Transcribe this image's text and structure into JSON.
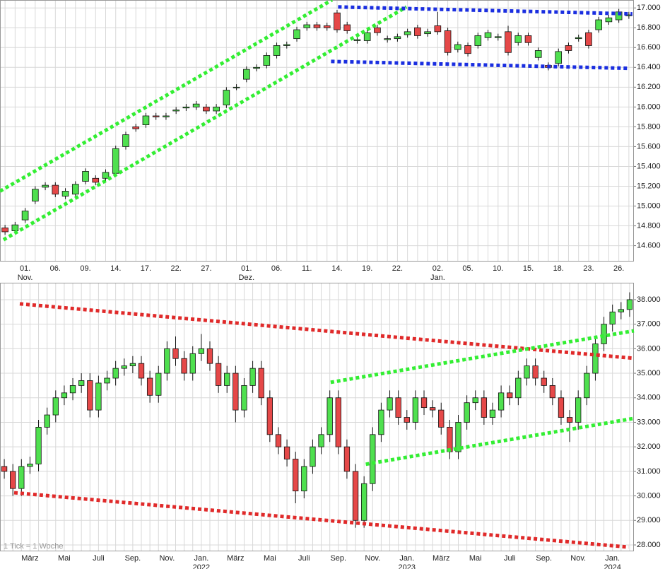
{
  "chart_data": [
    {
      "type": "candlestick",
      "up_color": "#4fe04f",
      "down_color": "#e54848",
      "grid": true,
      "categories": [
        null,
        null,
        "01.",
        null,
        null,
        "06.",
        null,
        null,
        "09.",
        null,
        null,
        "14.",
        null,
        null,
        "17.",
        null,
        null,
        "22.",
        null,
        null,
        "27.",
        null,
        null,
        null,
        "01.",
        null,
        null,
        "06.",
        null,
        null,
        "11.",
        null,
        null,
        "14.",
        null,
        null,
        "19.",
        null,
        null,
        "22.",
        null,
        null,
        null,
        "02.",
        null,
        null,
        "05.",
        null,
        null,
        "10.",
        null,
        null,
        "15.",
        null,
        null,
        "18.",
        null,
        null,
        "23.",
        null,
        null,
        "26.",
        null
      ],
      "sublabels": [
        null,
        null,
        "Nov.",
        null,
        null,
        null,
        null,
        null,
        null,
        null,
        null,
        null,
        null,
        null,
        null,
        null,
        null,
        null,
        null,
        null,
        null,
        null,
        null,
        null,
        "Dez.",
        null,
        null,
        null,
        null,
        null,
        null,
        null,
        null,
        null,
        null,
        null,
        null,
        null,
        null,
        null,
        null,
        null,
        null,
        "Jan.",
        null,
        null,
        null,
        null,
        null,
        null,
        null,
        null,
        null,
        null,
        null,
        null,
        null,
        null,
        null,
        null,
        null,
        null,
        null
      ],
      "open": [
        14.78,
        14.75,
        14.86,
        15.05,
        15.19,
        15.21,
        15.1,
        15.12,
        15.25,
        15.28,
        15.28,
        15.33,
        15.6,
        15.8,
        15.82,
        15.91,
        15.9,
        15.96,
        15.99,
        16.0,
        16.0,
        15.96,
        16.02,
        16.2,
        16.28,
        16.39,
        16.42,
        16.52,
        16.62,
        16.69,
        16.8,
        16.83,
        16.82,
        16.95,
        16.83,
        16.67,
        16.67,
        16.8,
        16.68,
        16.69,
        16.73,
        16.8,
        16.74,
        16.82,
        16.77,
        16.58,
        16.62,
        16.62,
        16.7,
        16.7,
        16.76,
        16.65,
        16.72,
        16.5,
        16.42,
        16.44,
        16.62,
        16.69,
        16.75,
        16.78,
        16.86,
        16.88,
        16.92
      ],
      "high": [
        14.81,
        14.84,
        14.98,
        15.2,
        15.24,
        15.24,
        15.18,
        15.25,
        15.38,
        15.31,
        15.37,
        15.61,
        15.75,
        15.83,
        15.94,
        15.94,
        15.94,
        16.0,
        16.03,
        16.06,
        16.03,
        16.03,
        16.2,
        16.23,
        16.41,
        16.43,
        16.55,
        16.65,
        16.66,
        16.81,
        16.86,
        16.86,
        16.85,
        16.98,
        16.86,
        16.71,
        16.78,
        16.83,
        16.72,
        16.74,
        16.79,
        16.83,
        16.79,
        16.96,
        16.8,
        16.66,
        16.65,
        16.75,
        16.78,
        16.74,
        16.82,
        16.75,
        16.75,
        16.6,
        16.45,
        16.59,
        16.65,
        16.73,
        16.78,
        16.91,
        16.93,
        16.99,
        16.96
      ],
      "low": [
        14.71,
        14.72,
        14.83,
        15.02,
        15.16,
        15.09,
        15.07,
        15.09,
        15.22,
        15.21,
        15.25,
        15.3,
        15.57,
        15.75,
        15.79,
        15.87,
        15.87,
        15.93,
        15.96,
        15.97,
        15.93,
        15.93,
        15.99,
        16.17,
        16.25,
        16.36,
        16.39,
        16.49,
        16.59,
        16.66,
        16.77,
        16.77,
        16.77,
        16.75,
        16.74,
        16.64,
        16.64,
        16.72,
        16.65,
        16.66,
        16.7,
        16.69,
        16.71,
        16.73,
        16.52,
        16.55,
        16.51,
        16.59,
        16.67,
        16.67,
        16.52,
        16.62,
        16.62,
        16.47,
        16.37,
        16.41,
        16.54,
        16.66,
        16.59,
        16.75,
        16.83,
        16.85,
        16.89
      ],
      "close": [
        14.74,
        14.81,
        14.95,
        15.17,
        15.21,
        15.12,
        15.15,
        15.22,
        15.35,
        15.24,
        15.34,
        15.58,
        15.72,
        15.78,
        15.91,
        15.9,
        15.91,
        15.97,
        16.0,
        16.03,
        15.96,
        16.0,
        16.17,
        16.2,
        16.38,
        16.4,
        16.52,
        16.62,
        16.63,
        16.78,
        16.83,
        16.8,
        16.8,
        16.78,
        16.77,
        16.68,
        16.75,
        16.75,
        16.69,
        16.71,
        16.76,
        16.72,
        16.76,
        16.76,
        16.55,
        16.63,
        16.54,
        16.72,
        16.75,
        16.71,
        16.55,
        16.72,
        16.65,
        16.57,
        16.4,
        16.56,
        16.57,
        16.7,
        16.62,
        16.88,
        16.9,
        16.96,
        16.93
      ],
      "ylim": [
        14.44,
        17.08
      ],
      "yticks": [
        {
          "value": 14.6,
          "label": "14.600"
        },
        {
          "value": 14.8,
          "label": "14.800"
        },
        {
          "value": 15.0,
          "label": "15.000"
        },
        {
          "value": 15.2,
          "label": "15.200"
        },
        {
          "value": 15.4,
          "label": "15.400"
        },
        {
          "value": 15.6,
          "label": "15.600"
        },
        {
          "value": 15.8,
          "label": "15.800"
        },
        {
          "value": 16.0,
          "label": "16.000"
        },
        {
          "value": 16.2,
          "label": "16.200"
        },
        {
          "value": 16.4,
          "label": "16.400"
        },
        {
          "value": 16.6,
          "label": "16.600"
        },
        {
          "value": 16.8,
          "label": "16.800"
        },
        {
          "value": 17.0,
          "label": "17.000"
        }
      ],
      "trendlines": [
        {
          "color": "#33ee33",
          "x": [
            -0.5,
            32.5
          ],
          "y": [
            15.15,
            17.08
          ]
        },
        {
          "color": "#33ee33",
          "x": [
            -0.15,
            39.9
          ],
          "y": [
            14.66,
            17.01
          ]
        },
        {
          "color": "#1a2ee0",
          "x": [
            33.1,
            62.35
          ],
          "y": [
            17.01,
            16.94
          ]
        },
        {
          "color": "#1a2ee0",
          "x": [
            32.4,
            62.1
          ],
          "y": [
            16.46,
            16.39
          ]
        }
      ]
    },
    {
      "type": "candlestick",
      "up_color": "#4fe04f",
      "down_color": "#e54848",
      "grid": true,
      "annotation": "1 Tick = 1 Woche",
      "categories": [
        null,
        null,
        null,
        "März",
        null,
        null,
        null,
        "Mai",
        null,
        null,
        null,
        "Juli",
        null,
        null,
        null,
        "Sep.",
        null,
        null,
        null,
        "Nov.",
        null,
        null,
        null,
        "Jan.",
        null,
        null,
        null,
        "März",
        null,
        null,
        null,
        "Mai",
        null,
        null,
        null,
        "Juli",
        null,
        null,
        null,
        "Sep.",
        null,
        null,
        null,
        "Nov.",
        null,
        null,
        null,
        "Jan.",
        null,
        null,
        null,
        "März",
        null,
        null,
        null,
        "Mai",
        null,
        null,
        null,
        "Juli",
        null,
        null,
        null,
        "Sep.",
        null,
        null,
        null,
        "Nov.",
        null,
        null,
        null,
        "Jan.",
        null,
        null
      ],
      "sublabels": [
        null,
        null,
        null,
        null,
        null,
        null,
        null,
        null,
        null,
        null,
        null,
        null,
        null,
        null,
        null,
        null,
        null,
        null,
        null,
        null,
        null,
        null,
        null,
        "2022",
        null,
        null,
        null,
        null,
        null,
        null,
        null,
        null,
        null,
        null,
        null,
        null,
        null,
        null,
        null,
        null,
        null,
        null,
        null,
        null,
        null,
        null,
        null,
        "2023",
        null,
        null,
        null,
        null,
        null,
        null,
        null,
        null,
        null,
        null,
        null,
        null,
        null,
        null,
        null,
        null,
        null,
        null,
        null,
        null,
        null,
        null,
        null,
        "2024",
        null,
        null
      ],
      "open": [
        31.2,
        31.0,
        30.3,
        31.2,
        31.3,
        32.8,
        33.3,
        34.0,
        34.2,
        34.5,
        34.7,
        33.5,
        34.6,
        34.8,
        35.2,
        35.3,
        35.4,
        34.8,
        34.1,
        35.0,
        36.0,
        35.6,
        35.0,
        35.8,
        36.0,
        35.4,
        34.5,
        35.0,
        33.5,
        34.5,
        35.2,
        34.0,
        32.5,
        32.0,
        31.5,
        30.2,
        31.2,
        32.0,
        32.5,
        34.0,
        32.0,
        31.0,
        29.0,
        30.5,
        32.5,
        33.5,
        34.0,
        33.2,
        33.0,
        34.0,
        33.6,
        33.5,
        32.8,
        31.8,
        33.0,
        33.8,
        34.0,
        33.2,
        33.5,
        34.2,
        34.0,
        34.8,
        35.3,
        34.8,
        34.5,
        34.0,
        33.2,
        33.0,
        34.0,
        35.0,
        36.2,
        37.0,
        37.5,
        37.6
      ],
      "high": [
        31.5,
        31.3,
        31.5,
        31.6,
        33.1,
        33.6,
        34.3,
        34.5,
        34.8,
        35.0,
        35.0,
        34.9,
        35.1,
        35.5,
        35.6,
        35.7,
        35.7,
        35.1,
        35.3,
        36.3,
        36.5,
        35.9,
        36.1,
        36.6,
        36.3,
        35.7,
        35.3,
        35.3,
        34.8,
        35.5,
        35.5,
        34.3,
        32.8,
        32.3,
        31.8,
        31.5,
        32.3,
        32.8,
        34.3,
        34.3,
        32.3,
        31.3,
        30.8,
        32.8,
        33.8,
        34.3,
        34.3,
        33.5,
        34.3,
        34.3,
        33.9,
        33.8,
        33.1,
        33.3,
        34.1,
        34.3,
        34.3,
        33.8,
        34.5,
        34.5,
        35.1,
        35.6,
        35.6,
        35.1,
        34.8,
        34.3,
        33.5,
        34.3,
        35.3,
        36.5,
        37.3,
        37.8,
        37.9,
        38.3
      ],
      "low": [
        30.7,
        30.0,
        30.0,
        30.9,
        31.0,
        32.5,
        33.0,
        33.7,
        33.9,
        34.2,
        33.2,
        33.2,
        34.3,
        34.5,
        34.9,
        35.0,
        34.5,
        33.8,
        33.8,
        34.7,
        35.3,
        34.7,
        34.7,
        35.5,
        35.1,
        34.2,
        34.2,
        33.0,
        33.2,
        34.2,
        33.7,
        32.2,
        31.7,
        31.2,
        29.7,
        29.9,
        30.9,
        31.7,
        32.2,
        31.7,
        30.7,
        28.7,
        28.7,
        30.2,
        32.2,
        33.2,
        32.9,
        32.7,
        32.7,
        33.3,
        33.2,
        32.5,
        31.5,
        31.5,
        32.7,
        33.5,
        32.9,
        32.9,
        33.2,
        33.7,
        33.7,
        34.5,
        34.5,
        34.2,
        33.7,
        32.9,
        32.2,
        32.7,
        33.7,
        34.7,
        35.9,
        36.7,
        37.2,
        37.3
      ],
      "close": [
        31.0,
        30.3,
        31.2,
        31.3,
        32.8,
        33.3,
        34.0,
        34.2,
        34.5,
        34.7,
        33.5,
        34.6,
        34.8,
        35.2,
        35.3,
        35.4,
        34.8,
        34.1,
        35.0,
        36.0,
        35.6,
        35.0,
        35.8,
        36.0,
        35.4,
        34.5,
        35.0,
        33.5,
        34.5,
        35.2,
        34.0,
        32.5,
        32.0,
        31.5,
        30.2,
        31.2,
        32.0,
        32.5,
        34.0,
        32.0,
        31.0,
        29.0,
        30.5,
        32.5,
        33.5,
        34.0,
        33.2,
        33.0,
        34.0,
        33.6,
        33.5,
        32.8,
        31.8,
        33.0,
        33.8,
        34.0,
        33.2,
        33.5,
        34.2,
        34.0,
        34.8,
        35.3,
        34.8,
        34.5,
        34.0,
        33.2,
        33.0,
        34.0,
        35.0,
        36.2,
        37.0,
        37.5,
        37.6,
        38.0
      ],
      "ylim": [
        27.74,
        38.69
      ],
      "yticks": [
        {
          "value": 28,
          "label": "28.000"
        },
        {
          "value": 29,
          "label": "29.000"
        },
        {
          "value": 30,
          "label": "30.000"
        },
        {
          "value": 31,
          "label": "31.000"
        },
        {
          "value": 32,
          "label": "32.000"
        },
        {
          "value": 33,
          "label": "33.000"
        },
        {
          "value": 34,
          "label": "34.000"
        },
        {
          "value": 35,
          "label": "35.000"
        },
        {
          "value": 36,
          "label": "36.000"
        },
        {
          "value": 37,
          "label": "37.000"
        },
        {
          "value": 38,
          "label": "38.000"
        }
      ],
      "trendlines": [
        {
          "color": "#e02a2a",
          "x": [
            1.81,
            73.5
          ],
          "y": [
            37.83,
            35.61
          ]
        },
        {
          "color": "#e02a2a",
          "x": [
            1.15,
            72.9
          ],
          "y": [
            30.13,
            27.91
          ]
        },
        {
          "color": "#33ee33",
          "x": [
            38.1,
            73.5
          ],
          "y": [
            34.63,
            36.73
          ]
        },
        {
          "color": "#33ee33",
          "x": [
            42.2,
            73.5
          ],
          "y": [
            31.29,
            33.16
          ]
        }
      ]
    }
  ]
}
